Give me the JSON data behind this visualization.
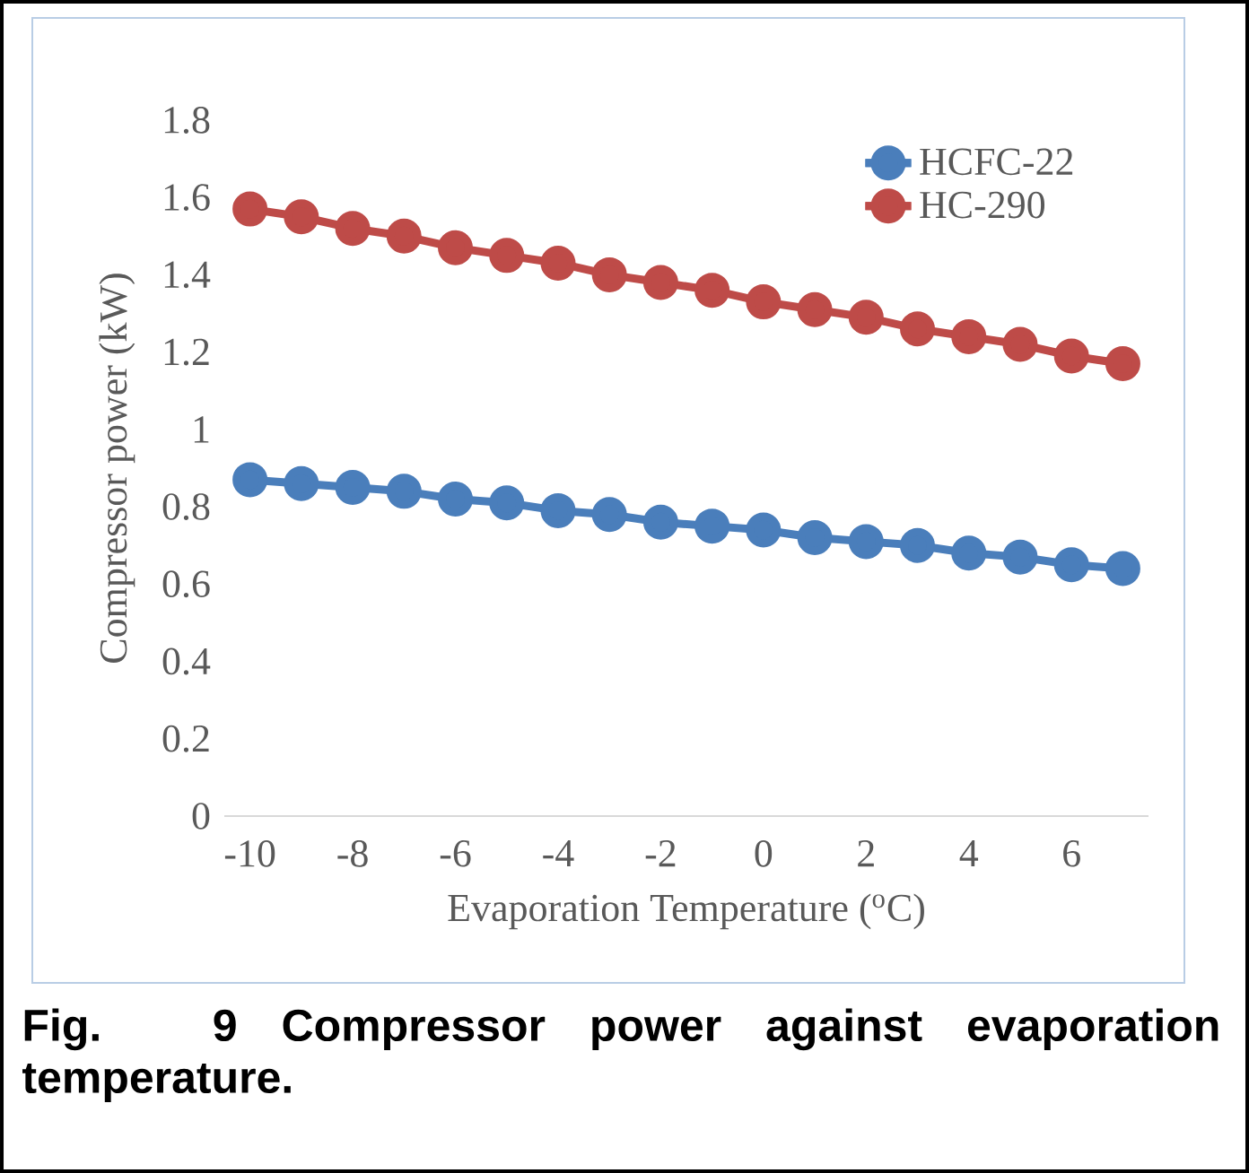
{
  "chart_data": {
    "type": "line",
    "xlabel": "Evaporation Temperature ($^{o}$C)",
    "ylabel": "Compressor power (kW)",
    "x": [
      -10,
      -9,
      -8,
      -7,
      -6,
      -5,
      -4,
      -3,
      -2,
      -1,
      0,
      1,
      2,
      3,
      4,
      5,
      6,
      7
    ],
    "series": [
      {
        "name": "HCFC-22",
        "color": "#4a7ebb",
        "values": [
          0.87,
          0.86,
          0.85,
          0.84,
          0.82,
          0.81,
          0.79,
          0.78,
          0.76,
          0.75,
          0.74,
          0.72,
          0.71,
          0.7,
          0.68,
          0.67,
          0.65,
          0.64
        ]
      },
      {
        "name": "HC-290",
        "color": "#be4b48",
        "values": [
          1.57,
          1.55,
          1.52,
          1.5,
          1.47,
          1.45,
          1.43,
          1.4,
          1.38,
          1.36,
          1.33,
          1.31,
          1.29,
          1.26,
          1.24,
          1.22,
          1.19,
          1.17
        ]
      }
    ],
    "xlim": [
      -10.5,
      7.5
    ],
    "xticks": [
      -10,
      -8,
      -6,
      -4,
      -2,
      0,
      2,
      4,
      6
    ],
    "ylim": [
      0,
      1.8
    ],
    "yticks": [
      0,
      0.2,
      0.4,
      0.6,
      0.8,
      1,
      1.2,
      1.4,
      1.6,
      1.8
    ],
    "legend": "top right",
    "marker": "circle",
    "line_style": "solid",
    "annotations": [
      "Fig. 9 Compressor power against evaporation temperature."
    ]
  }
}
